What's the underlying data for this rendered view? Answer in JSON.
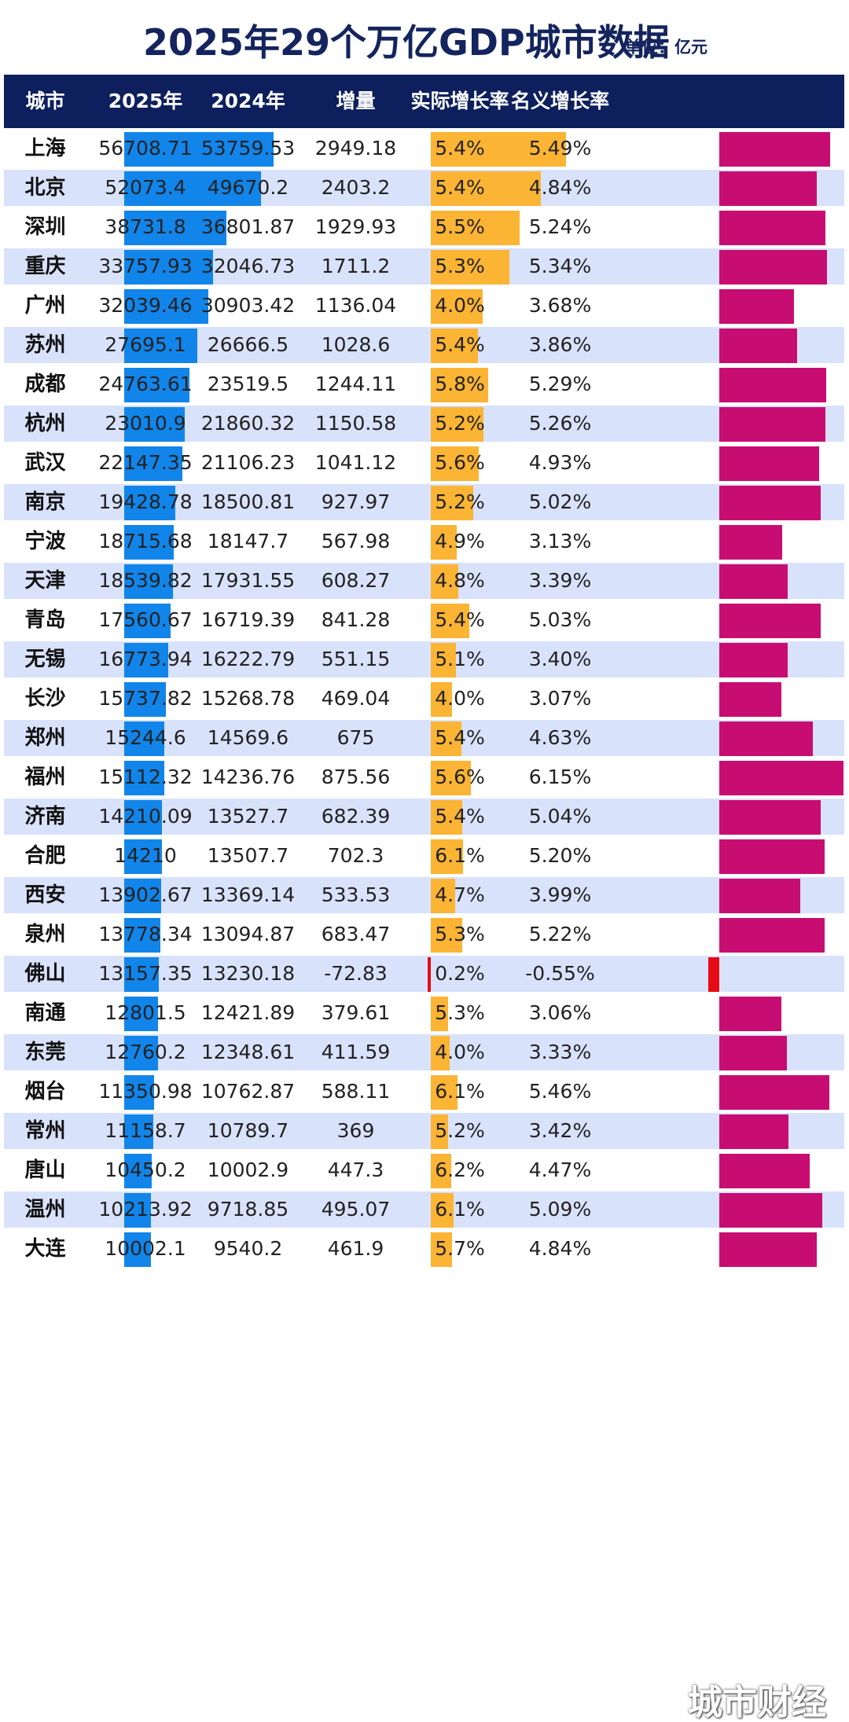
{
  "title": "2025年29个万亿GDP城市数据",
  "unit": "单位：亿元",
  "watermark": "城市财经",
  "colors": {
    "header_bg": "#0d1f5c",
    "gdp_bar": "#1185ea",
    "increase_bar": "#fbb433",
    "nominal_bar": "#c80d72",
    "negative_bar": "#e60b14",
    "row_alt": "#d9e2fb"
  },
  "chart_data": {
    "type": "table",
    "columns": [
      "城市",
      "2025年",
      "2024年",
      "增量",
      "实际增长率",
      "名义增长率"
    ],
    "rows": [
      {
        "city": "上海",
        "gdp2025": "56708.71",
        "gdp2024": "53759.53",
        "increase": "2949.18",
        "real_growth": "5.4%",
        "nominal_growth": "5.49%"
      },
      {
        "city": "北京",
        "gdp2025": "52073.4",
        "gdp2024": "49670.2",
        "increase": "2403.2",
        "real_growth": "5.4%",
        "nominal_growth": "4.84%"
      },
      {
        "city": "深圳",
        "gdp2025": "38731.8",
        "gdp2024": "36801.87",
        "increase": "1929.93",
        "real_growth": "5.5%",
        "nominal_growth": "5.24%"
      },
      {
        "city": "重庆",
        "gdp2025": "33757.93",
        "gdp2024": "32046.73",
        "increase": "1711.2",
        "real_growth": "5.3%",
        "nominal_growth": "5.34%"
      },
      {
        "city": "广州",
        "gdp2025": "32039.46",
        "gdp2024": "30903.42",
        "increase": "1136.04",
        "real_growth": "4.0%",
        "nominal_growth": "3.68%"
      },
      {
        "city": "苏州",
        "gdp2025": "27695.1",
        "gdp2024": "26666.5",
        "increase": "1028.6",
        "real_growth": "5.4%",
        "nominal_growth": "3.86%"
      },
      {
        "city": "成都",
        "gdp2025": "24763.61",
        "gdp2024": "23519.5",
        "increase": "1244.11",
        "real_growth": "5.8%",
        "nominal_growth": "5.29%"
      },
      {
        "city": "杭州",
        "gdp2025": "23010.9",
        "gdp2024": "21860.32",
        "increase": "1150.58",
        "real_growth": "5.2%",
        "nominal_growth": "5.26%"
      },
      {
        "city": "武汉",
        "gdp2025": "22147.35",
        "gdp2024": "21106.23",
        "increase": "1041.12",
        "real_growth": "5.6%",
        "nominal_growth": "4.93%"
      },
      {
        "city": "南京",
        "gdp2025": "19428.78",
        "gdp2024": "18500.81",
        "increase": "927.97",
        "real_growth": "5.2%",
        "nominal_growth": "5.02%"
      },
      {
        "city": "宁波",
        "gdp2025": "18715.68",
        "gdp2024": "18147.7",
        "increase": "567.98",
        "real_growth": "4.9%",
        "nominal_growth": "3.13%"
      },
      {
        "city": "天津",
        "gdp2025": "18539.82",
        "gdp2024": "17931.55",
        "increase": "608.27",
        "real_growth": "4.8%",
        "nominal_growth": "3.39%"
      },
      {
        "city": "青岛",
        "gdp2025": "17560.67",
        "gdp2024": "16719.39",
        "increase": "841.28",
        "real_growth": "5.4%",
        "nominal_growth": "5.03%"
      },
      {
        "city": "无锡",
        "gdp2025": "16773.94",
        "gdp2024": "16222.79",
        "increase": "551.15",
        "real_growth": "5.1%",
        "nominal_growth": "3.40%"
      },
      {
        "city": "长沙",
        "gdp2025": "15737.82",
        "gdp2024": "15268.78",
        "increase": "469.04",
        "real_growth": "4.0%",
        "nominal_growth": "3.07%"
      },
      {
        "city": "郑州",
        "gdp2025": "15244.6",
        "gdp2024": "14569.6",
        "increase": "675",
        "real_growth": "5.4%",
        "nominal_growth": "4.63%"
      },
      {
        "city": "福州",
        "gdp2025": "15112.32",
        "gdp2024": "14236.76",
        "increase": "875.56",
        "real_growth": "5.6%",
        "nominal_growth": "6.15%"
      },
      {
        "city": "济南",
        "gdp2025": "14210.09",
        "gdp2024": "13527.7",
        "increase": "682.39",
        "real_growth": "5.4%",
        "nominal_growth": "5.04%"
      },
      {
        "city": "合肥",
        "gdp2025": "14210",
        "gdp2024": "13507.7",
        "increase": "702.3",
        "real_growth": "6.1%",
        "nominal_growth": "5.20%"
      },
      {
        "city": "西安",
        "gdp2025": "13902.67",
        "gdp2024": "13369.14",
        "increase": "533.53",
        "real_growth": "4.7%",
        "nominal_growth": "3.99%"
      },
      {
        "city": "泉州",
        "gdp2025": "13778.34",
        "gdp2024": "13094.87",
        "increase": "683.47",
        "real_growth": "5.3%",
        "nominal_growth": "5.22%"
      },
      {
        "city": "佛山",
        "gdp2025": "13157.35",
        "gdp2024": "13230.18",
        "increase": "-72.83",
        "real_growth": "0.2%",
        "nominal_growth": "-0.55%"
      },
      {
        "city": "南通",
        "gdp2025": "12801.5",
        "gdp2024": "12421.89",
        "increase": "379.61",
        "real_growth": "5.3%",
        "nominal_growth": "3.06%"
      },
      {
        "city": "东莞",
        "gdp2025": "12760.2",
        "gdp2024": "12348.61",
        "increase": "411.59",
        "real_growth": "4.0%",
        "nominal_growth": "3.33%"
      },
      {
        "city": "烟台",
        "gdp2025": "11350.98",
        "gdp2024": "10762.87",
        "increase": "588.11",
        "real_growth": "6.1%",
        "nominal_growth": "5.46%"
      },
      {
        "city": "常州",
        "gdp2025": "11158.7",
        "gdp2024": "10789.7",
        "increase": "369",
        "real_growth": "5.2%",
        "nominal_growth": "3.42%"
      },
      {
        "city": "唐山",
        "gdp2025": "10450.2",
        "gdp2024": "10002.9",
        "increase": "447.3",
        "real_growth": "6.2%",
        "nominal_growth": "4.47%"
      },
      {
        "city": "温州",
        "gdp2025": "10213.92",
        "gdp2024": "9718.85",
        "increase": "495.07",
        "real_growth": "6.1%",
        "nominal_growth": "5.09%"
      },
      {
        "city": "大连",
        "gdp2025": "10002.1",
        "gdp2024": "9540.2",
        "increase": "461.9",
        "real_growth": "5.7%",
        "nominal_growth": "4.84%"
      }
    ]
  }
}
